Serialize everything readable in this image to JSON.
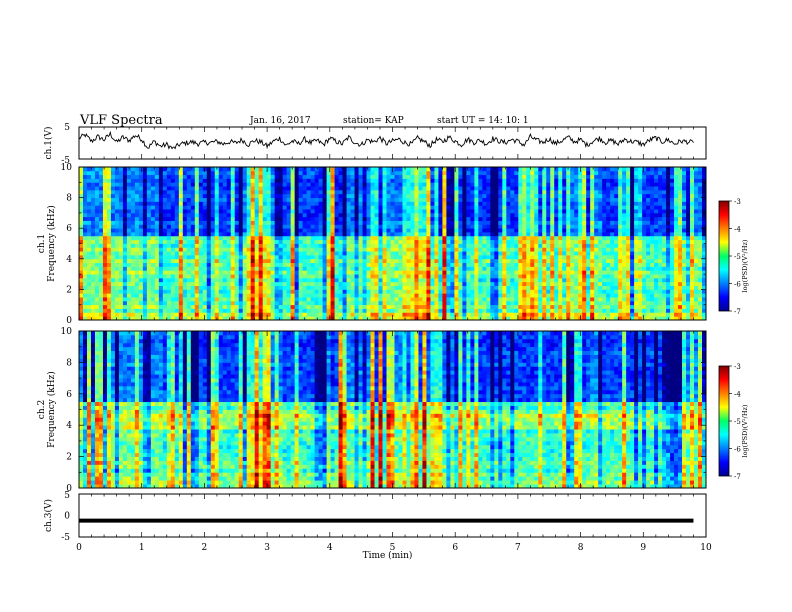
{
  "header": {
    "title": "VLF Spectra",
    "date": "Jan. 16, 2017",
    "station": "station= KAP",
    "start": "start  UT =   14: 10: 1"
  },
  "chart_data": [
    {
      "type": "line",
      "id": "ch1_waveform",
      "ylabel": "ch.1(V)",
      "ylim": [
        -5,
        5
      ],
      "yticks": [
        "5",
        "-5"
      ],
      "xlim": [
        0,
        10
      ],
      "note": "dense noisy trace oscillating roughly between -2 and 3 V",
      "x": [
        0,
        0.1,
        0.2,
        0.3,
        0.4,
        0.5,
        0.6,
        0.7,
        0.8,
        0.9,
        1.0,
        1.1,
        1.2,
        1.3,
        1.4,
        1.5,
        1.6,
        1.7,
        1.8,
        1.9,
        2.0,
        2.1,
        2.2,
        2.3,
        2.4,
        2.5,
        2.6,
        2.7,
        2.8,
        2.9,
        3.0,
        3.1,
        3.2,
        3.3,
        3.4,
        3.5,
        3.6,
        3.7,
        3.8,
        3.9,
        4.0,
        4.1,
        4.2,
        4.3,
        4.4,
        4.5,
        4.6,
        4.7,
        4.8,
        4.9,
        5.0,
        5.1,
        5.2,
        5.3,
        5.4,
        5.5,
        5.6,
        5.7,
        5.8,
        5.9,
        6.0,
        6.1,
        6.2,
        6.3,
        6.4,
        6.5,
        6.6,
        6.7,
        6.8,
        6.9,
        7.0,
        7.1,
        7.2,
        7.3,
        7.4,
        7.5,
        7.6,
        7.7,
        7.8,
        7.9,
        8.0,
        8.1,
        8.2,
        8.3,
        8.4,
        8.5,
        8.6,
        8.7,
        8.8,
        8.9,
        9.0,
        9.1,
        9.2,
        9.3,
        9.4,
        9.5,
        9.6,
        9.7,
        9.8
      ],
      "y": [
        1.5,
        2.5,
        0.5,
        2,
        1,
        2.8,
        0.2,
        1.8,
        0.8,
        2.4,
        1.2,
        -1.5,
        0.5,
        -1,
        -0.5,
        -1.8,
        -0.5,
        0,
        0.3,
        -0.2,
        0.2,
        0.1,
        0.5,
        -0.3,
        0.4,
        0,
        1,
        -0.5,
        0.8,
        0.3,
        -1,
        0.5,
        1.5,
        -0.8,
        0.6,
        -0.2,
        1.2,
        0,
        0.8,
        -0.5,
        1.5,
        0.5,
        -0.3,
        1.8,
        0.2,
        -0.6,
        1,
        0.3,
        1.6,
        -0.2,
        0.6,
        1.2,
        0.1,
        -0.4,
        1.5,
        0.5,
        -0.8,
        1,
        0.4,
        1.8,
        0.6,
        -0.5,
        1.2,
        0.2,
        0.9,
        -0.3,
        1.4,
        0.6,
        0.1,
        1.1,
        0.5,
        -0.6,
        2,
        0.8,
        0.2,
        1.3,
        -0.2,
        0.7,
        1.8,
        0.4,
        1,
        -0.6,
        0.6,
        1.5,
        0.2,
        0.8,
        -0.4,
        1.2,
        0.5,
        0.3,
        -0.5,
        0.9,
        1.6,
        0.4,
        1,
        -0.3,
        0.6,
        0.4,
        0.1
      ]
    },
    {
      "type": "heatmap",
      "id": "ch1_spectrogram",
      "ylabel": "ch.1\nFrequency  (kHz)",
      "ylim": [
        0,
        10
      ],
      "yticks": [
        "0",
        "2",
        "4",
        "6",
        "8",
        "10"
      ],
      "xlim": [
        0,
        10
      ],
      "colorbar": {
        "label": "log(PSD)(V²/Hz)",
        "range": [
          -7,
          -3
        ],
        "ticks": [
          "-3",
          "-4",
          "-5",
          "-6",
          "-7"
        ]
      },
      "summary": "intense broadband noise (log PSD about -5 to -3.5) below about 5.5 kHz; weaker (-6.5 to -5) above, with frequent vertical impulsive streaks"
    },
    {
      "type": "heatmap",
      "id": "ch2_spectrogram",
      "ylabel": "ch.2\nFrequency  (kHz)",
      "ylim": [
        0,
        10
      ],
      "yticks": [
        "0",
        "2",
        "4",
        "6",
        "8",
        "10"
      ],
      "xlim": [
        0,
        10
      ],
      "colorbar": {
        "label": "log(PSD)(V²/Hz)",
        "range": [
          -7,
          -3
        ],
        "ticks": [
          "-3",
          "-4",
          "-5",
          "-6",
          "-7"
        ]
      },
      "summary": "similar to ch.1 with stronger emission band near 4 to 5 kHz and weaker background elsewhere"
    },
    {
      "type": "line",
      "id": "ch3_waveform",
      "ylabel": "ch.3(V)",
      "ylim": [
        -5,
        5
      ],
      "yticks": [
        "5",
        "0",
        "-5"
      ],
      "xlim": [
        0,
        10
      ],
      "x": [
        0,
        9.8
      ],
      "y": [
        -1.2,
        -1.2
      ]
    }
  ],
  "xaxis": {
    "label": "Time  (min)",
    "ticks": [
      "0",
      "1",
      "2",
      "3",
      "4",
      "5",
      "6",
      "7",
      "8",
      "9",
      "10"
    ]
  }
}
